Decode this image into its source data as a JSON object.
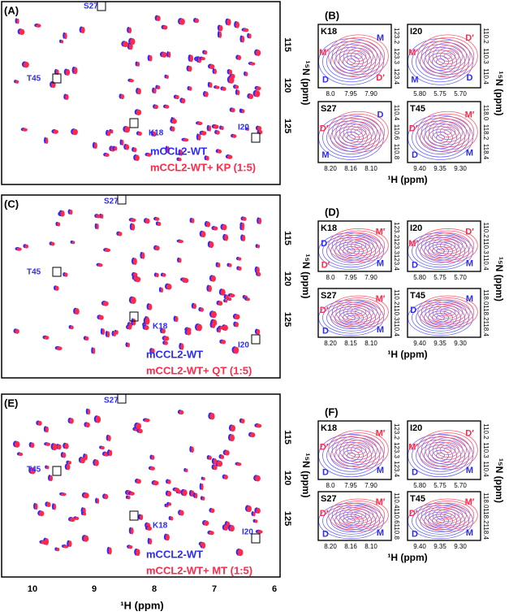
{
  "figure": {
    "x_axis_label": "¹H (ppm)",
    "y_axis_label": "¹⁵N (ppm)",
    "x_ticks": [
      "10",
      "9",
      "8",
      "7",
      "6"
    ],
    "panels": [
      {
        "letter": "(A)",
        "residues": [
          "S27",
          "T45",
          "K18",
          "I20"
        ],
        "legend": [
          "mCCL2-WT",
          "mCCL2-WT+ KP (1:5)"
        ],
        "y_ticks": [
          "115",
          "120",
          "125"
        ]
      },
      {
        "letter": "(C)",
        "residues": [
          "S27",
          "T45",
          "K18",
          "I20"
        ],
        "legend": [
          "mCCL2-WT",
          "mCCL2-WT+ QT (1:5)"
        ],
        "y_ticks": [
          "115",
          "120",
          "125"
        ]
      },
      {
        "letter": "(E)",
        "residues": [
          "S27",
          "T45",
          "K18",
          "I20"
        ],
        "legend": [
          "mCCL2-WT",
          "mCCL2-WT+ MT (1:5)"
        ],
        "y_ticks": [
          "115",
          "120",
          "125"
        ]
      }
    ],
    "inset_groups": [
      {
        "letter": "(B)",
        "x_axis_label": "¹H (ppm)",
        "y_axis_label": "¹⁵N (ppm)",
        "insets": [
          {
            "residue": "K18",
            "x_ticks": [
              "8.0",
              "7.95",
              "7.90"
            ],
            "y_ticks": [
              "123.2",
              "123.3",
              "123.4"
            ],
            "states": [
              {
                "text": "M′",
                "color": "red"
              },
              {
                "text": "M",
                "color": "blue"
              },
              {
                "text": "D",
                "color": "blue"
              },
              {
                "text": "D′",
                "color": "red"
              }
            ]
          },
          {
            "residue": "I20",
            "x_ticks": [
              "5.80",
              "5.75",
              "5.70"
            ],
            "y_ticks": [
              "110.2",
              "110.3",
              "110.4"
            ],
            "states": [
              {
                "text": "M′",
                "color": "red"
              },
              {
                "text": "D′",
                "color": "red"
              },
              {
                "text": "M",
                "color": "blue"
              },
              {
                "text": "D",
                "color": "blue"
              }
            ]
          },
          {
            "residue": "S27",
            "x_ticks": [
              "8.20",
              "8.16",
              "8.10"
            ],
            "y_ticks": [
              "110.4",
              "110.6",
              "110.8"
            ],
            "states": [
              {
                "text": "D′",
                "color": "red"
              },
              {
                "text": "D",
                "color": "blue"
              },
              {
                "text": "M",
                "color": "blue"
              }
            ]
          },
          {
            "residue": "T45",
            "x_ticks": [
              "9.40",
              "9.35",
              "9.30"
            ],
            "y_ticks": [
              "118.0",
              "118.2",
              "118.4"
            ],
            "states": [
              {
                "text": "D′",
                "color": "red"
              },
              {
                "text": "M′",
                "color": "red"
              },
              {
                "text": "D",
                "color": "blue"
              },
              {
                "text": "M",
                "color": "blue"
              }
            ]
          }
        ]
      },
      {
        "letter": "(D)",
        "x_axis_label": "¹H (ppm)",
        "y_axis_label": "¹⁵N (ppm)",
        "insets": [
          {
            "residue": "K18",
            "x_ticks": [
              "8.0",
              "7.95",
              "7.90"
            ],
            "y_ticks": [
              "123.2",
              "123.3",
              "123.4"
            ],
            "states": [
              {
                "text": "D",
                "color": "blue"
              },
              {
                "text": "M′",
                "color": "red"
              },
              {
                "text": "D′",
                "color": "red"
              },
              {
                "text": "M",
                "color": "blue"
              }
            ]
          },
          {
            "residue": "I20",
            "x_ticks": [
              "5.80",
              "5.75",
              "5.70"
            ],
            "y_ticks": [
              "110.2",
              "110.3",
              "110.4"
            ],
            "states": [
              {
                "text": "M′",
                "color": "red"
              },
              {
                "text": "D′",
                "color": "red"
              },
              {
                "text": "D",
                "color": "blue"
              },
              {
                "text": "M",
                "color": "blue"
              }
            ]
          },
          {
            "residue": "S27",
            "x_ticks": [
              "8.20",
              "8.15",
              "8.10"
            ],
            "y_ticks": [
              "110.2",
              "110.3",
              "110.4"
            ],
            "states": [
              {
                "text": "D′",
                "color": "red"
              },
              {
                "text": "M′",
                "color": "red"
              },
              {
                "text": "D",
                "color": "blue"
              },
              {
                "text": "M",
                "color": "blue"
              }
            ]
          },
          {
            "residue": "T45",
            "x_ticks": [
              "9.40",
              "9.35",
              "9.30"
            ],
            "y_ticks": [
              "118.0",
              "118.2",
              "118.4"
            ],
            "states": [
              {
                "text": "D",
                "color": "blue"
              },
              {
                "text": "M",
                "color": "blue"
              }
            ]
          }
        ]
      },
      {
        "letter": "(F)",
        "x_axis_label": "¹H (ppm)",
        "y_axis_label": "¹⁵N (ppm)",
        "insets": [
          {
            "residue": "K18",
            "x_ticks": [
              "8.0",
              "7.95",
              "7.90"
            ],
            "y_ticks": [
              "123.2",
              "123.3",
              "123.4"
            ],
            "states": [
              {
                "text": "D′",
                "color": "red"
              },
              {
                "text": "M′",
                "color": "red"
              },
              {
                "text": "D",
                "color": "blue"
              },
              {
                "text": "M",
                "color": "blue"
              }
            ]
          },
          {
            "residue": "I20",
            "x_ticks": [
              "5.80",
              "5.75",
              "5.70"
            ],
            "y_ticks": [
              "110.2",
              "110.3",
              "110.4"
            ],
            "states": [
              {
                "text": "M′",
                "color": "red"
              },
              {
                "text": "D′",
                "color": "red"
              },
              {
                "text": "D",
                "color": "blue"
              },
              {
                "text": "M",
                "color": "blue"
              }
            ]
          },
          {
            "residue": "S27",
            "x_ticks": [
              "8.20",
              "8.16",
              "8.10"
            ],
            "y_ticks": [
              "110.4",
              "110.6",
              "110.8"
            ],
            "states": [
              {
                "text": "D′",
                "color": "red"
              },
              {
                "text": "M′",
                "color": "red"
              },
              {
                "text": "D",
                "color": "blue"
              },
              {
                "text": "M",
                "color": "blue"
              }
            ]
          },
          {
            "residue": "T45",
            "x_ticks": [
              "9.40",
              "9.35",
              "9.30"
            ],
            "y_ticks": [
              "118.0",
              "118.2",
              "118.4"
            ],
            "states": [
              {
                "text": "D′",
                "color": "red"
              },
              {
                "text": "M′",
                "color": "red"
              },
              {
                "text": "D",
                "color": "blue"
              },
              {
                "text": "M",
                "color": "blue"
              }
            ]
          }
        ]
      }
    ]
  }
}
